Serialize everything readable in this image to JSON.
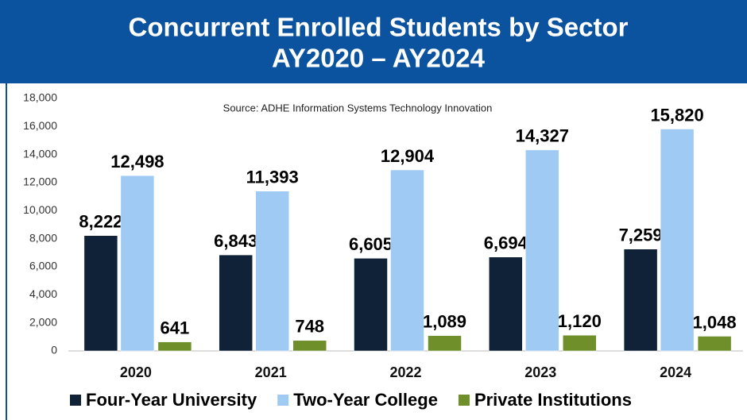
{
  "chart_data": {
    "type": "bar",
    "title": "Concurrent Enrolled Students by Sector",
    "subtitle": "AY2020 – AY2024",
    "annotation": "Source: ADHE Information Systems Technology Innovation",
    "categories": [
      "2020",
      "2021",
      "2022",
      "2023",
      "2024"
    ],
    "series": [
      {
        "name": "Four-Year University",
        "color": "#0f2238",
        "values": [
          8222,
          6843,
          6605,
          6694,
          7259
        ],
        "value_labels": [
          "8,222",
          "6,843",
          "6,605",
          "6,694",
          "7,259"
        ]
      },
      {
        "name": "Two-Year College",
        "color": "#9fcaf4",
        "values": [
          12498,
          11393,
          12904,
          14327,
          15820
        ],
        "value_labels": [
          "12,498",
          "11,393",
          "12,904",
          "14,327",
          "15,820"
        ]
      },
      {
        "name": "Private Institutions",
        "color": "#6f8f2a",
        "values": [
          641,
          748,
          1089,
          1120,
          1048
        ],
        "value_labels": [
          "641",
          "748",
          "1,089",
          "1,120",
          "1,048"
        ]
      }
    ],
    "ylim": [
      0,
      18000
    ],
    "yticks": [
      0,
      {
        "value": 2000,
        "label": "2,000"
      },
      {
        "value": 4000,
        "label": "4,000"
      },
      {
        "value": 6000,
        "label": "6,000"
      },
      {
        "value": 8000,
        "label": "8,000"
      },
      {
        "value": 10000,
        "label": "10,000"
      },
      {
        "value": 12000,
        "label": "12,000"
      },
      {
        "value": 14000,
        "label": "14,000"
      },
      {
        "value": 16000,
        "label": "16,000"
      },
      {
        "value": 18000,
        "label": "18,000"
      }
    ],
    "grid": false,
    "legend": "bottom"
  }
}
